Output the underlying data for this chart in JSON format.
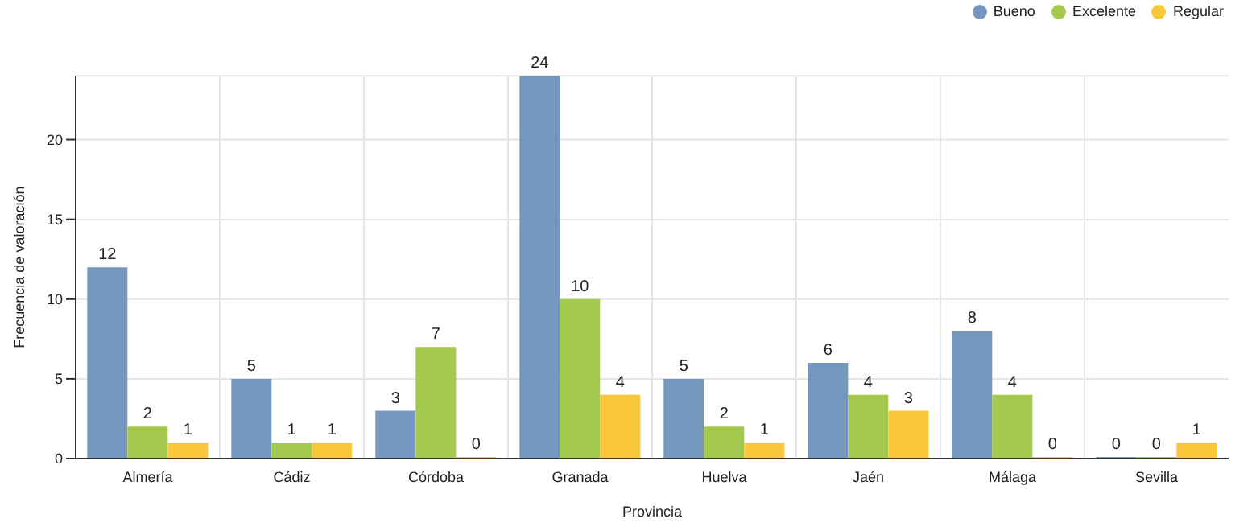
{
  "chart_data": {
    "type": "bar",
    "xlabel": "Provincia",
    "ylabel": "Frecuencia de valoración",
    "categories": [
      "Almería",
      "Cádiz",
      "Córdoba",
      "Granada",
      "Huelva",
      "Jaén",
      "Málaga",
      "Sevilla"
    ],
    "series": [
      {
        "name": "Bueno",
        "color": "#7597bd",
        "values": [
          12,
          5,
          3,
          24,
          5,
          6,
          8,
          0
        ]
      },
      {
        "name": "Excelente",
        "color": "#a3c94f",
        "values": [
          2,
          1,
          7,
          10,
          2,
          4,
          4,
          0
        ]
      },
      {
        "name": "Regular",
        "color": "#f9c73c",
        "values": [
          1,
          1,
          0,
          4,
          1,
          3,
          0,
          1
        ]
      }
    ],
    "ylim": [
      0,
      24
    ],
    "yticks": [
      0,
      5,
      10,
      15,
      20
    ],
    "grid": true,
    "legend": "top right",
    "data_labels": true
  }
}
